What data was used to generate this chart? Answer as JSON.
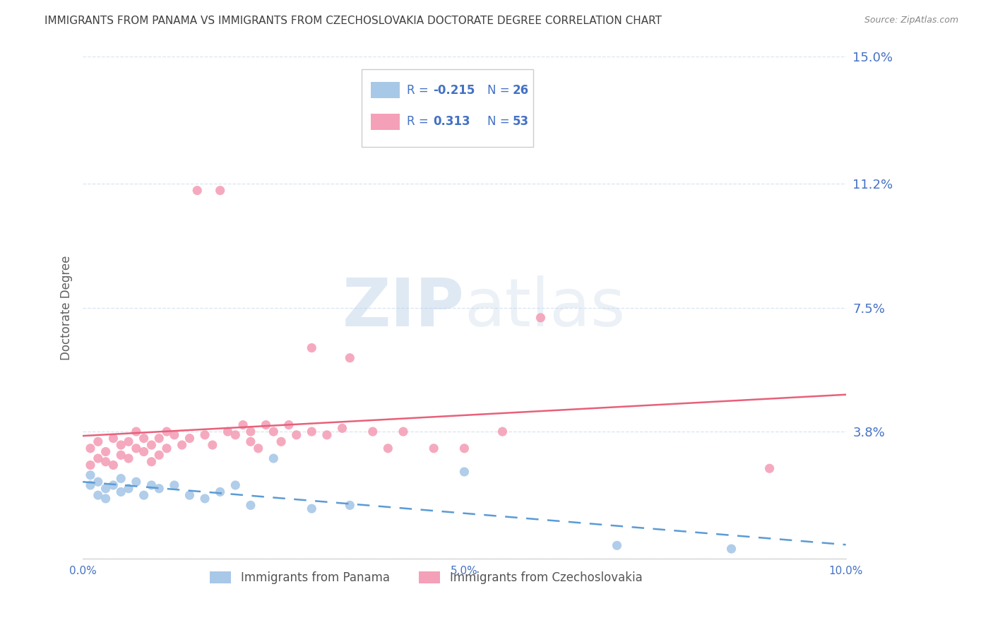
{
  "title": "IMMIGRANTS FROM PANAMA VS IMMIGRANTS FROM CZECHOSLOVAKIA DOCTORATE DEGREE CORRELATION CHART",
  "source": "Source: ZipAtlas.com",
  "ylabel": "Doctorate Degree",
  "xlim": [
    0.0,
    0.1
  ],
  "ylim": [
    0.0,
    0.15
  ],
  "ytick_labels": [
    "",
    "3.8%",
    "7.5%",
    "11.2%",
    "15.0%"
  ],
  "ytick_values": [
    0.0,
    0.038,
    0.075,
    0.112,
    0.15
  ],
  "xtick_labels": [
    "0.0%",
    "",
    "",
    "",
    "",
    "5.0%",
    "",
    "",
    "",
    "",
    "10.0%"
  ],
  "xtick_values": [
    0.0,
    0.01,
    0.02,
    0.03,
    0.04,
    0.05,
    0.06,
    0.07,
    0.08,
    0.09,
    0.1
  ],
  "series_panama": {
    "label": "Immigrants from Panama",
    "color": "#a8c8e8",
    "R": -0.215,
    "N": 26,
    "line_color": "#5b9bd5",
    "x": [
      0.001,
      0.001,
      0.002,
      0.002,
      0.003,
      0.003,
      0.004,
      0.005,
      0.005,
      0.006,
      0.007,
      0.008,
      0.009,
      0.01,
      0.012,
      0.014,
      0.016,
      0.018,
      0.02,
      0.022,
      0.025,
      0.03,
      0.035,
      0.05,
      0.07,
      0.085
    ],
    "y": [
      0.025,
      0.022,
      0.023,
      0.019,
      0.021,
      0.018,
      0.022,
      0.02,
      0.024,
      0.021,
      0.023,
      0.019,
      0.022,
      0.021,
      0.022,
      0.019,
      0.018,
      0.02,
      0.022,
      0.016,
      0.03,
      0.015,
      0.016,
      0.026,
      0.004,
      0.003
    ]
  },
  "series_czech": {
    "label": "Immigrants from Czechoslovakia",
    "color": "#f4a0b8",
    "R": 0.313,
    "N": 53,
    "line_color": "#e8607a",
    "x": [
      0.001,
      0.001,
      0.002,
      0.002,
      0.003,
      0.003,
      0.004,
      0.004,
      0.005,
      0.005,
      0.006,
      0.006,
      0.007,
      0.007,
      0.008,
      0.008,
      0.009,
      0.009,
      0.01,
      0.01,
      0.011,
      0.011,
      0.012,
      0.013,
      0.014,
      0.015,
      0.016,
      0.017,
      0.018,
      0.019,
      0.02,
      0.021,
      0.022,
      0.022,
      0.023,
      0.024,
      0.025,
      0.026,
      0.027,
      0.028,
      0.03,
      0.03,
      0.032,
      0.034,
      0.035,
      0.038,
      0.04,
      0.042,
      0.046,
      0.05,
      0.055,
      0.06,
      0.09
    ],
    "y": [
      0.028,
      0.033,
      0.03,
      0.035,
      0.029,
      0.032,
      0.028,
      0.036,
      0.031,
      0.034,
      0.03,
      0.035,
      0.033,
      0.038,
      0.032,
      0.036,
      0.029,
      0.034,
      0.031,
      0.036,
      0.033,
      0.038,
      0.037,
      0.034,
      0.036,
      0.11,
      0.037,
      0.034,
      0.11,
      0.038,
      0.037,
      0.04,
      0.038,
      0.035,
      0.033,
      0.04,
      0.038,
      0.035,
      0.04,
      0.037,
      0.063,
      0.038,
      0.037,
      0.039,
      0.06,
      0.038,
      0.033,
      0.038,
      0.033,
      0.033,
      0.038,
      0.072,
      0.027
    ]
  },
  "watermark_zip": "ZIP",
  "watermark_atlas": "atlas",
  "background_color": "#ffffff",
  "grid_color": "#d8e4f0",
  "title_color": "#404040",
  "tick_color": "#4472c4",
  "label_color": "#606060"
}
